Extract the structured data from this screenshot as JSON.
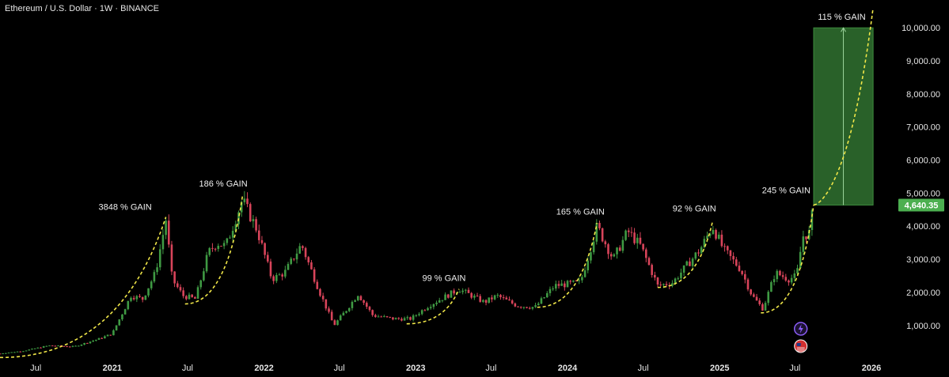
{
  "header": {
    "title": "Ethereum / U.S. Dollar · 1W · BINANCE"
  },
  "chart_data": {
    "type": "candlestick",
    "title": "Ethereum / U.S. Dollar · 1W · BINANCE",
    "x_range": [
      "2020-04-06",
      "2026-03-01"
    ],
    "ylim": [
      0,
      10500
    ],
    "y_ticks": [
      {
        "value": 10000,
        "label": "10,000.00"
      },
      {
        "value": 9000,
        "label": "9,000.00"
      },
      {
        "value": 8000,
        "label": "8,000.00"
      },
      {
        "value": 7000,
        "label": "7,000.00"
      },
      {
        "value": 6000,
        "label": "6,000.00"
      },
      {
        "value": 5000,
        "label": "5,000.00"
      },
      {
        "value": 4000,
        "label": "4,000.00"
      },
      {
        "value": 3000,
        "label": "3,000.00"
      },
      {
        "value": 2000,
        "label": "2,000.00"
      },
      {
        "value": 1000,
        "label": "1,000.00"
      }
    ],
    "x_ticks": [
      {
        "date": "2020-07-01",
        "label": "Jul",
        "year": false
      },
      {
        "date": "2021-01-01",
        "label": "2021",
        "year": true
      },
      {
        "date": "2021-07-01",
        "label": "Jul",
        "year": false
      },
      {
        "date": "2022-01-01",
        "label": "2022",
        "year": true
      },
      {
        "date": "2022-07-01",
        "label": "Jul",
        "year": false
      },
      {
        "date": "2023-01-01",
        "label": "2023",
        "year": true
      },
      {
        "date": "2023-07-01",
        "label": "Jul",
        "year": false
      },
      {
        "date": "2024-01-01",
        "label": "2024",
        "year": true
      },
      {
        "date": "2024-07-01",
        "label": "Jul",
        "year": false
      },
      {
        "date": "2025-01-01",
        "label": "2025",
        "year": true
      },
      {
        "date": "2025-07-01",
        "label": "Jul",
        "year": false
      },
      {
        "date": "2026-01-01",
        "label": "2026",
        "year": true
      }
    ],
    "price_path": [
      [
        "2020-04-06",
        150
      ],
      [
        "2020-06-01",
        230
      ],
      [
        "2020-08-01",
        390
      ],
      [
        "2020-10-01",
        360
      ],
      [
        "2020-12-01",
        600
      ],
      [
        "2021-01-01",
        750
      ],
      [
        "2021-02-15",
        1900
      ],
      [
        "2021-03-15",
        1800
      ],
      [
        "2021-04-15",
        2600
      ],
      [
        "2021-05-10",
        4200
      ],
      [
        "2021-05-25",
        2400
      ],
      [
        "2021-06-20",
        1900
      ],
      [
        "2021-07-20",
        1800
      ],
      [
        "2021-08-20",
        3200
      ],
      [
        "2021-09-10",
        3500
      ],
      [
        "2021-10-01",
        3400
      ],
      [
        "2021-11-10",
        4800
      ],
      [
        "2021-12-15",
        3900
      ],
      [
        "2022-01-20",
        2400
      ],
      [
        "2022-02-20",
        2600
      ],
      [
        "2022-04-01",
        3450
      ],
      [
        "2022-05-15",
        2000
      ],
      [
        "2022-06-18",
        1000
      ],
      [
        "2022-07-20",
        1500
      ],
      [
        "2022-08-15",
        1950
      ],
      [
        "2022-09-20",
        1300
      ],
      [
        "2022-11-10",
        1200
      ],
      [
        "2022-12-20",
        1200
      ],
      [
        "2023-02-01",
        1600
      ],
      [
        "2023-04-15",
        2100
      ],
      [
        "2023-06-15",
        1700
      ],
      [
        "2023-07-15",
        1900
      ],
      [
        "2023-09-01",
        1600
      ],
      [
        "2023-10-15",
        1550
      ],
      [
        "2023-12-01",
        2200
      ],
      [
        "2024-02-01",
        2300
      ],
      [
        "2024-03-12",
        4000
      ],
      [
        "2024-04-20",
        3000
      ],
      [
        "2024-05-25",
        3850
      ],
      [
        "2024-06-25",
        3400
      ],
      [
        "2024-08-05",
        2200
      ],
      [
        "2024-09-10",
        2300
      ],
      [
        "2024-11-15",
        3300
      ],
      [
        "2024-12-15",
        4000
      ],
      [
        "2025-01-10",
        3300
      ],
      [
        "2025-02-20",
        2700
      ],
      [
        "2025-03-20",
        1900
      ],
      [
        "2025-04-15",
        1500
      ],
      [
        "2025-05-15",
        2600
      ],
      [
        "2025-06-15",
        2400
      ],
      [
        "2025-07-05",
        2500
      ],
      [
        "2025-07-20",
        3700
      ],
      [
        "2025-08-05",
        3800
      ],
      [
        "2025-08-15",
        4640
      ]
    ],
    "last_price": {
      "value": 4640.35,
      "label": "4,640.35",
      "color": "#4caf50"
    },
    "projection": {
      "start_date": "2025-08-15",
      "end_date": "2026-01-05",
      "low": 4640.35,
      "high": 10000,
      "fill": "#2e6b2e",
      "label": "115 % GAIN"
    },
    "gain_arcs": [
      {
        "label": "3848 % GAIN",
        "start": [
          "2020-04-06",
          30
        ],
        "end": [
          "2021-05-10",
          4280
        ],
        "label_at": [
          "2021-02-01",
          4500
        ]
      },
      {
        "label": "186 % GAIN",
        "start": [
          "2021-06-25",
          1650
        ],
        "end": [
          "2021-11-10",
          4900
        ],
        "label_at": [
          "2021-09-25",
          5200
        ]
      },
      {
        "label": "99 % GAIN",
        "start": [
          "2022-12-10",
          1050
        ],
        "end": [
          "2023-04-15",
          2100
        ],
        "label_at": [
          "2023-03-10",
          2350
        ]
      },
      {
        "label": "165 % GAIN",
        "start": [
          "2023-10-20",
          1550
        ],
        "end": [
          "2024-03-12",
          4100
        ],
        "label_at": [
          "2024-02-01",
          4350
        ]
      },
      {
        "label": "92 % GAIN",
        "start": [
          "2024-08-05",
          2150
        ],
        "end": [
          "2024-12-15",
          4150
        ],
        "label_at": [
          "2024-11-01",
          4450
        ]
      },
      {
        "label": "245 % GAIN",
        "start": [
          "2025-04-10",
          1380
        ],
        "end": [
          "2025-08-15",
          4640
        ],
        "label_at": [
          "2025-06-10",
          5000
        ]
      }
    ],
    "colors": {
      "up": "#26a69a",
      "down": "#ef5350",
      "up_candle": "#3f9a43",
      "down_candle": "#d8445a",
      "arc": "#f0e648"
    }
  },
  "icons": [
    {
      "name": "flash-event-icon",
      "color": "#8a5cf6"
    },
    {
      "name": "us-flag-icon",
      "color": "#d32f2f"
    }
  ]
}
